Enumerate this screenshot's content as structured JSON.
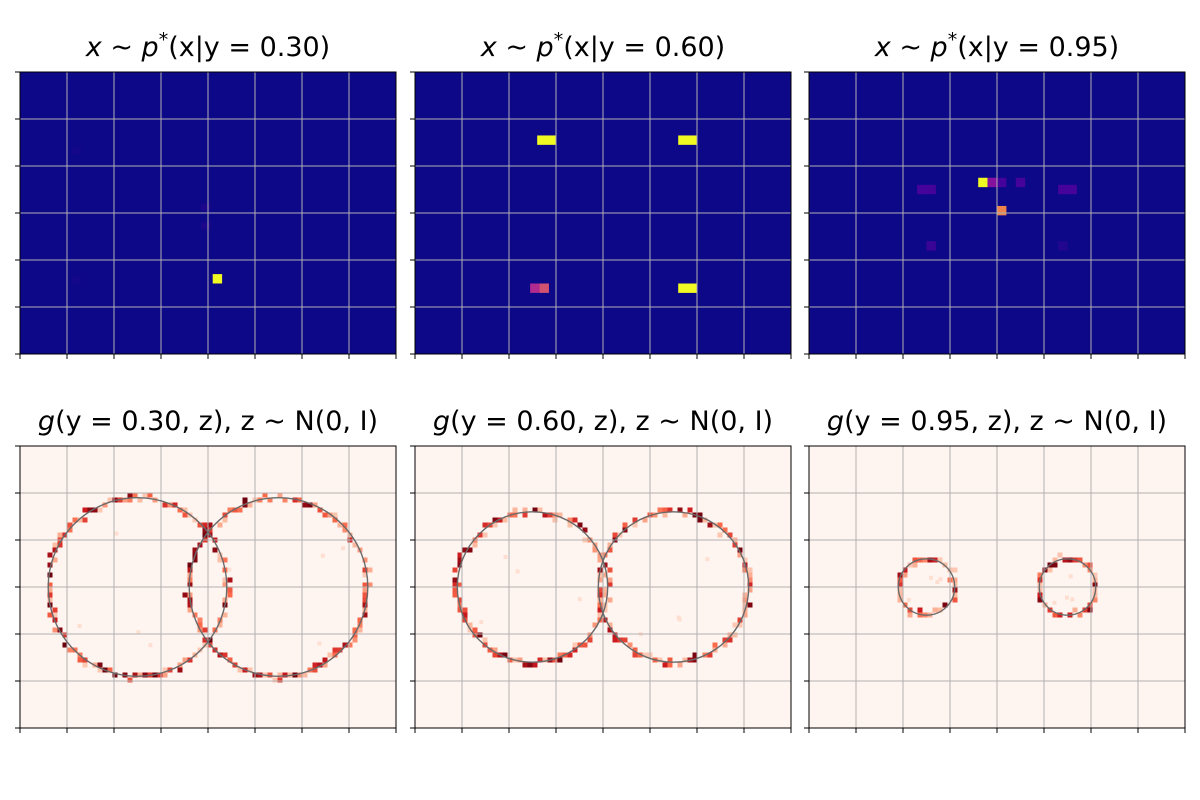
{
  "chart_data": [
    {
      "type": "heatmap",
      "title": "x ~ p*(x|y = 0.30)",
      "title_parts": {
        "lhs": "x",
        "sim": "~",
        "p": "p",
        "star": "*",
        "args": "(x|y = 0.30)"
      },
      "colormap": "plasma",
      "grid": true,
      "cells": [
        {
          "x": 4.1,
          "y": 1.5,
          "w": 0.2,
          "h": 0.2,
          "value": 1.0
        },
        {
          "x": 3.85,
          "y": 3.05,
          "w": 0.2,
          "h": 0.15,
          "value": 0.04
        },
        {
          "x": 3.85,
          "y": 2.65,
          "w": 0.2,
          "h": 0.15,
          "value": 0.04
        },
        {
          "x": 1.1,
          "y": 4.25,
          "w": 0.2,
          "h": 0.15,
          "value": 0.02
        },
        {
          "x": 1.1,
          "y": 1.5,
          "w": 0.2,
          "h": 0.15,
          "value": 0.02
        }
      ]
    },
    {
      "type": "heatmap",
      "title": "x ~ p*(x|y = 0.60)",
      "title_parts": {
        "lhs": "x",
        "sim": "~",
        "p": "p",
        "star": "*",
        "args": "(x|y = 0.60)"
      },
      "colormap": "plasma",
      "grid": true,
      "cells": [
        {
          "x": 2.6,
          "y": 4.45,
          "w": 0.4,
          "h": 0.2,
          "value": 1.0
        },
        {
          "x": 5.6,
          "y": 4.45,
          "w": 0.4,
          "h": 0.2,
          "value": 1.0
        },
        {
          "x": 5.6,
          "y": 1.3,
          "w": 0.4,
          "h": 0.2,
          "value": 1.0
        },
        {
          "x": 2.45,
          "y": 1.3,
          "w": 0.2,
          "h": 0.2,
          "value": 0.5
        },
        {
          "x": 2.65,
          "y": 1.3,
          "w": 0.2,
          "h": 0.2,
          "value": 0.6
        }
      ]
    },
    {
      "type": "heatmap",
      "title": "x ~ p*(x|y = 0.95)",
      "title_parts": {
        "lhs": "x",
        "sim": "~",
        "p": "p",
        "star": "*",
        "args": "(x|y = 0.95)"
      },
      "colormap": "plasma",
      "grid": true,
      "cells": [
        {
          "x": 3.6,
          "y": 3.55,
          "w": 0.2,
          "h": 0.2,
          "value": 1.0
        },
        {
          "x": 3.8,
          "y": 3.55,
          "w": 0.2,
          "h": 0.2,
          "value": 0.35
        },
        {
          "x": 4.0,
          "y": 3.55,
          "w": 0.2,
          "h": 0.2,
          "value": 0.15
        },
        {
          "x": 4.4,
          "y": 3.55,
          "w": 0.2,
          "h": 0.2,
          "value": 0.15
        },
        {
          "x": 4.0,
          "y": 2.95,
          "w": 0.2,
          "h": 0.2,
          "value": 0.72
        },
        {
          "x": 2.3,
          "y": 3.4,
          "w": 0.4,
          "h": 0.2,
          "value": 0.15
        },
        {
          "x": 5.3,
          "y": 3.4,
          "w": 0.4,
          "h": 0.2,
          "value": 0.15
        },
        {
          "x": 2.5,
          "y": 2.2,
          "w": 0.2,
          "h": 0.2,
          "value": 0.12
        },
        {
          "x": 5.3,
          "y": 2.2,
          "w": 0.2,
          "h": 0.2,
          "value": 0.06
        }
      ]
    },
    {
      "type": "heatmap",
      "title": "g(y = 0.30, z), z ~ N(0, I)",
      "title_parts": {
        "head": "g",
        "mid": "(y = 0.30, z), z",
        "sim": "~",
        "dist": "N(0, I)"
      },
      "colormap": "reds",
      "grid": true,
      "circles": [
        {
          "cx": 2.5,
          "cy": 3.0,
          "r": 1.9
        },
        {
          "cx": 5.5,
          "cy": 3.0,
          "r": 1.9
        }
      ],
      "seed": 11
    },
    {
      "type": "heatmap",
      "title": "g(y = 0.60, z), z ~ N(0, I)",
      "title_parts": {
        "head": "g",
        "mid": "(y = 0.60, z), z",
        "sim": "~",
        "dist": "N(0, I)"
      },
      "colormap": "reds",
      "grid": true,
      "circles": [
        {
          "cx": 2.5,
          "cy": 3.0,
          "r": 1.6
        },
        {
          "cx": 5.5,
          "cy": 3.0,
          "r": 1.6
        }
      ],
      "seed": 29
    },
    {
      "type": "heatmap",
      "title": "g(y = 0.95, z), z ~ N(0, I)",
      "title_parts": {
        "head": "g",
        "mid": "(y = 0.95, z), z",
        "sim": "~",
        "dist": "N(0, I)"
      },
      "colormap": "reds",
      "grid": true,
      "circles": [
        {
          "cx": 2.5,
          "cy": 3.0,
          "r": 0.6
        },
        {
          "cx": 5.5,
          "cy": 3.0,
          "r": 0.6
        }
      ],
      "seed": 53
    }
  ],
  "axes": {
    "xlim": [
      0,
      8
    ],
    "ylim": [
      0,
      6
    ],
    "xticks": [
      0,
      1,
      2,
      3,
      4,
      5,
      6,
      7,
      8
    ],
    "yticks": [
      0,
      1,
      2,
      3,
      4,
      5,
      6
    ],
    "tick_labels_shown": false
  },
  "colors": {
    "plasma_background": "#0d0887",
    "plasma_mid": "#cc4778",
    "plasma_high": "#f0f921",
    "reds_background": "#fff5f0",
    "reds_high": "#67000d",
    "ring": "#6a6a6a",
    "grid": "#b0b0b0"
  }
}
